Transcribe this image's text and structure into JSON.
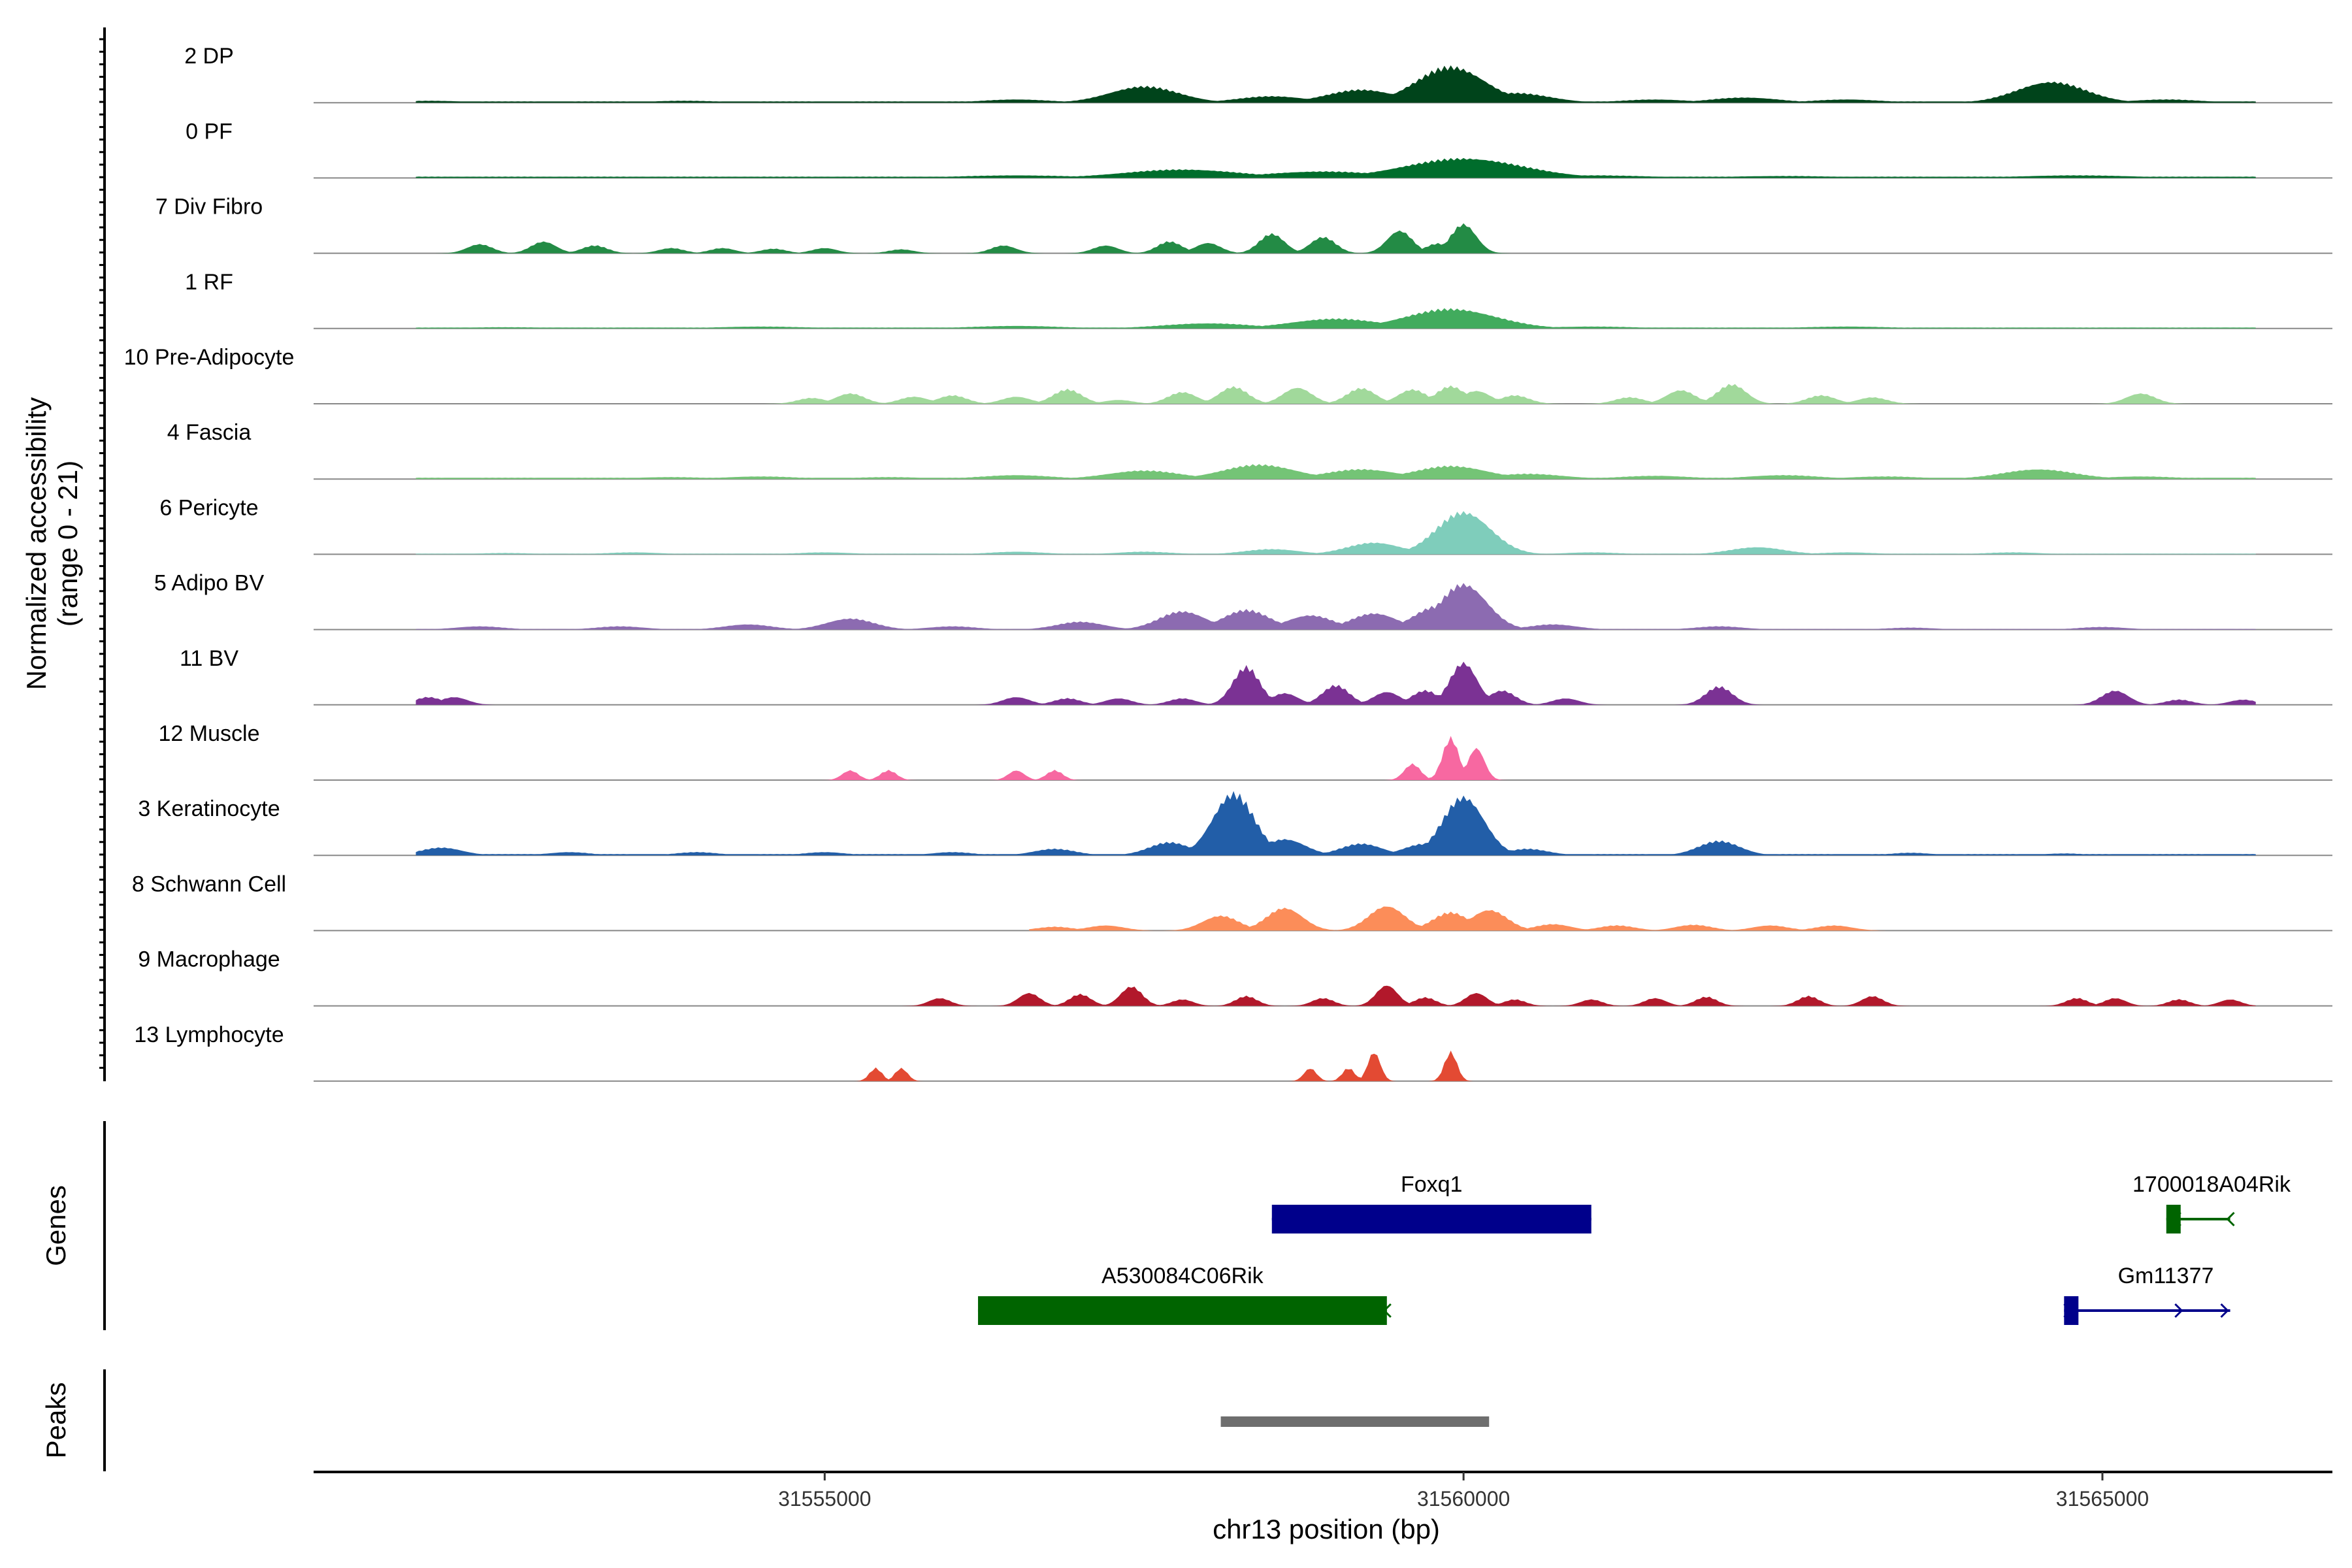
{
  "chart_data": {
    "type": "area",
    "title": "",
    "ylabel": "Normalized accessibility",
    "ylabel_range": "(range 0 - 21)",
    "xlabel": "chr13 position (bp)",
    "xlim": [
      31551000,
      31566800
    ],
    "ylim": [
      0,
      21
    ],
    "x_ticks": [
      31555000,
      31560000,
      31565000
    ],
    "x_tick_labels": [
      "31555000",
      "31560000",
      "31565000"
    ],
    "tracks": [
      {
        "name": "2 DP",
        "color": "#00441b",
        "peaks": [
          [
            31551900,
            0.3
          ],
          [
            31553900,
            0.3
          ],
          [
            31555000,
            0.2
          ],
          [
            31556500,
            0.5
          ],
          [
            31557500,
            2.5
          ],
          [
            31558500,
            1.0
          ],
          [
            31559200,
            2.0
          ],
          [
            31559900,
            5.5
          ],
          [
            31560400,
            1.5
          ],
          [
            31561500,
            0.5
          ],
          [
            31562200,
            0.8
          ],
          [
            31563000,
            0.5
          ],
          [
            31564600,
            3.2
          ],
          [
            31565500,
            0.5
          ]
        ],
        "peak_width": 380,
        "baseline": 0.2,
        "start": 31551800,
        "end": 31566200
      },
      {
        "name": "0 PF",
        "color": "#006d2c",
        "peaks": [
          [
            31556500,
            0.4
          ],
          [
            31557800,
            1.3
          ],
          [
            31558900,
            1.0
          ],
          [
            31560000,
            3.0
          ],
          [
            31561000,
            0.4
          ],
          [
            31562500,
            0.3
          ],
          [
            31564800,
            0.4
          ]
        ],
        "peak_width": 650,
        "baseline": 0.2,
        "start": 31551800,
        "end": 31566200
      },
      {
        "name": "7 Div Fibro",
        "color": "#238b45",
        "peaks": [
          [
            31552300,
            1.4
          ],
          [
            31552800,
            1.8
          ],
          [
            31553200,
            1.2
          ],
          [
            31553800,
            0.8
          ],
          [
            31554200,
            0.8
          ],
          [
            31554600,
            0.7
          ],
          [
            31555000,
            0.8
          ],
          [
            31555600,
            0.6
          ],
          [
            31556400,
            1.2
          ],
          [
            31557200,
            1.2
          ],
          [
            31557700,
            1.8
          ],
          [
            31558000,
            1.6
          ],
          [
            31558500,
            3.0
          ],
          [
            31558900,
            2.5
          ],
          [
            31559500,
            3.5
          ],
          [
            31559800,
            1.5
          ],
          [
            31560000,
            4.5
          ]
        ],
        "peak_width": 140,
        "baseline": 0,
        "start": 31551800,
        "end": 31566200
      },
      {
        "name": "1 RF",
        "color": "#41ab5d",
        "peaks": [
          [
            31552500,
            0.2
          ],
          [
            31554500,
            0.3
          ],
          [
            31556500,
            0.4
          ],
          [
            31558000,
            0.8
          ],
          [
            31559000,
            1.5
          ],
          [
            31559900,
            3.0
          ],
          [
            31561000,
            0.3
          ],
          [
            31563000,
            0.3
          ]
        ],
        "peak_width": 500,
        "baseline": 0.15,
        "start": 31551800,
        "end": 31566200
      },
      {
        "name": "10 Pre-Adipocyte",
        "color": "#a1d99b",
        "peaks": [
          [
            31554900,
            0.9
          ],
          [
            31555200,
            1.6
          ],
          [
            31555700,
            1.1
          ],
          [
            31556000,
            1.3
          ],
          [
            31556500,
            1.1
          ],
          [
            31556900,
            2.2
          ],
          [
            31557300,
            0.6
          ],
          [
            31557800,
            1.8
          ],
          [
            31558200,
            2.6
          ],
          [
            31558700,
            2.5
          ],
          [
            31559200,
            2.4
          ],
          [
            31559600,
            2.2
          ],
          [
            31559900,
            2.7
          ],
          [
            31560100,
            2.0
          ],
          [
            31560400,
            1.3
          ],
          [
            31561300,
            1.0
          ],
          [
            31561700,
            2.1
          ],
          [
            31562100,
            3.0
          ],
          [
            31562800,
            1.3
          ],
          [
            31563200,
            1.0
          ],
          [
            31565300,
            1.6
          ]
        ],
        "peak_width": 160,
        "baseline": 0,
        "start": 31551800,
        "end": 31566200
      },
      {
        "name": "4 Fascia",
        "color": "#74c476",
        "peaks": [
          [
            31553800,
            0.3
          ],
          [
            31554500,
            0.4
          ],
          [
            31555500,
            0.3
          ],
          [
            31556500,
            0.6
          ],
          [
            31557500,
            1.3
          ],
          [
            31558400,
            2.2
          ],
          [
            31559200,
            1.5
          ],
          [
            31559900,
            2.0
          ],
          [
            31560500,
            0.8
          ],
          [
            31561500,
            0.5
          ],
          [
            31562500,
            0.6
          ],
          [
            31563300,
            0.4
          ],
          [
            31564500,
            1.5
          ],
          [
            31565300,
            0.4
          ]
        ],
        "peak_width": 400,
        "baseline": 0.2,
        "start": 31551800,
        "end": 31566200
      },
      {
        "name": "6 Pericyte",
        "color": "#7fcdbb",
        "peaks": [
          [
            31552500,
            0.2
          ],
          [
            31553500,
            0.3
          ],
          [
            31555000,
            0.3
          ],
          [
            31556500,
            0.4
          ],
          [
            31557500,
            0.4
          ],
          [
            31558500,
            0.8
          ],
          [
            31559300,
            1.8
          ],
          [
            31560000,
            6.5
          ],
          [
            31561000,
            0.3
          ],
          [
            31562300,
            1.1
          ],
          [
            31563000,
            0.3
          ],
          [
            31564300,
            0.3
          ]
        ],
        "peak_width": 300,
        "baseline": 0.1,
        "start": 31551800,
        "end": 31566200
      },
      {
        "name": "5 Adipo BV",
        "color": "#8c6bb1",
        "peaks": [
          [
            31552300,
            0.5
          ],
          [
            31553400,
            0.5
          ],
          [
            31554400,
            0.8
          ],
          [
            31555200,
            1.7
          ],
          [
            31556000,
            0.5
          ],
          [
            31557000,
            1.2
          ],
          [
            31557800,
            2.8
          ],
          [
            31558300,
            3.0
          ],
          [
            31558800,
            2.2
          ],
          [
            31559300,
            2.5
          ],
          [
            31559800,
            3.6
          ],
          [
            31560000,
            7.0
          ],
          [
            31560700,
            0.8
          ],
          [
            31562000,
            0.5
          ],
          [
            31563500,
            0.3
          ],
          [
            31565000,
            0.4
          ]
        ],
        "peak_width": 260,
        "baseline": 0.1,
        "start": 31551800,
        "end": 31566200
      },
      {
        "name": "11 BV",
        "color": "#7b3294",
        "peaks": [
          [
            31551900,
            1.2
          ],
          [
            31552100,
            1.2
          ],
          [
            31556500,
            1.2
          ],
          [
            31556900,
            1.0
          ],
          [
            31557300,
            1.0
          ],
          [
            31557800,
            1.0
          ],
          [
            31558300,
            5.8
          ],
          [
            31558600,
            1.8
          ],
          [
            31559000,
            3.0
          ],
          [
            31559400,
            2.0
          ],
          [
            31559700,
            2.2
          ],
          [
            31560000,
            6.5
          ],
          [
            31560300,
            2.2
          ],
          [
            31560800,
            1.0
          ],
          [
            31562000,
            2.8
          ],
          [
            31565100,
            2.2
          ],
          [
            31565600,
            0.8
          ],
          [
            31566100,
            0.8
          ]
        ],
        "peak_width": 150,
        "baseline": 0,
        "start": 31551800,
        "end": 31566200
      },
      {
        "name": "12 Muscle",
        "color": "#f768a1",
        "peaks": [
          [
            31555200,
            1.5
          ],
          [
            31555500,
            1.5
          ],
          [
            31556500,
            1.5
          ],
          [
            31556800,
            1.5
          ],
          [
            31559600,
            2.5
          ],
          [
            31559900,
            6.5
          ],
          [
            31560100,
            5.0
          ]
        ],
        "peak_width": 90,
        "baseline": 0,
        "start": 31551800,
        "end": 31566200
      },
      {
        "name": "3 Keratinocyte",
        "color": "#225ea8",
        "peaks": [
          [
            31552000,
            1.2
          ],
          [
            31553000,
            0.5
          ],
          [
            31554000,
            0.5
          ],
          [
            31555000,
            0.5
          ],
          [
            31556000,
            0.5
          ],
          [
            31556800,
            1.0
          ],
          [
            31557700,
            2.0
          ],
          [
            31558200,
            9.5
          ],
          [
            31558600,
            2.5
          ],
          [
            31559200,
            1.8
          ],
          [
            31559700,
            1.8
          ],
          [
            31560000,
            9.0
          ],
          [
            31560500,
            1.0
          ],
          [
            31562000,
            2.2
          ],
          [
            31563500,
            0.4
          ],
          [
            31564700,
            0.3
          ]
        ],
        "peak_width": 230,
        "baseline": 0.2,
        "start": 31551800,
        "end": 31566200
      },
      {
        "name": "8 Schwann Cell",
        "color": "#fc8d59",
        "peaks": [
          [
            31556800,
            0.6
          ],
          [
            31557200,
            0.8
          ],
          [
            31558100,
            2.3
          ],
          [
            31558600,
            3.5
          ],
          [
            31559400,
            3.8
          ],
          [
            31559900,
            2.8
          ],
          [
            31560200,
            3.2
          ],
          [
            31560700,
            1.0
          ],
          [
            31561200,
            0.8
          ],
          [
            31561800,
            0.9
          ],
          [
            31562400,
            0.8
          ],
          [
            31562900,
            0.8
          ]
        ],
        "peak_width": 200,
        "baseline": 0,
        "start": 31556600,
        "end": 31563300
      },
      {
        "name": "9 Macrophage",
        "color": "#b2182b",
        "peaks": [
          [
            31555900,
            1.2
          ],
          [
            31556600,
            2.0
          ],
          [
            31557000,
            1.8
          ],
          [
            31557400,
            3.0
          ],
          [
            31557800,
            1.0
          ],
          [
            31558300,
            1.5
          ],
          [
            31558900,
            1.2
          ],
          [
            31559400,
            3.2
          ],
          [
            31559700,
            1.3
          ],
          [
            31560100,
            2.0
          ],
          [
            31560400,
            1.0
          ],
          [
            31561000,
            1.0
          ],
          [
            31561500,
            1.2
          ],
          [
            31561900,
            1.4
          ],
          [
            31562700,
            1.5
          ],
          [
            31563200,
            1.5
          ],
          [
            31564800,
            1.2
          ],
          [
            31565100,
            1.2
          ],
          [
            31565600,
            1.0
          ],
          [
            31566000,
            1.0
          ]
        ],
        "peak_width": 120,
        "baseline": 0,
        "start": 31551800,
        "end": 31566200
      },
      {
        "name": "13 Lymphocyte",
        "color": "#e34a33",
        "peaks": [
          [
            31555400,
            2.0
          ],
          [
            31555600,
            2.0
          ],
          [
            31558800,
            2.0
          ],
          [
            31559100,
            2.0
          ],
          [
            31559300,
            4.5
          ],
          [
            31559900,
            4.5
          ]
        ],
        "peak_width": 70,
        "baseline": 0,
        "start": 31551800,
        "end": 31566200
      }
    ],
    "genes_label": "Genes",
    "genes": [
      {
        "name": "Foxq1",
        "start": 31558500,
        "end": 31561000,
        "strand": "+",
        "color": "#00008b",
        "row": 0
      },
      {
        "name": "1700018A04Rik",
        "start": 31565500,
        "end": 31566000,
        "strand": "-",
        "color": "#006400",
        "row": 0
      },
      {
        "name": "A530084C06Rik",
        "start": 31556200,
        "end": 31559400,
        "strand": "-",
        "color": "#006400",
        "row": 1
      },
      {
        "name": "Gm11377",
        "start": 31564700,
        "end": 31566000,
        "strand": "+",
        "color": "#00008b",
        "row": 1
      }
    ],
    "peaks_label": "Peaks",
    "peak_regions": [
      {
        "start": 31558100,
        "end": 31560200,
        "color": "#6e6e6e"
      }
    ]
  }
}
